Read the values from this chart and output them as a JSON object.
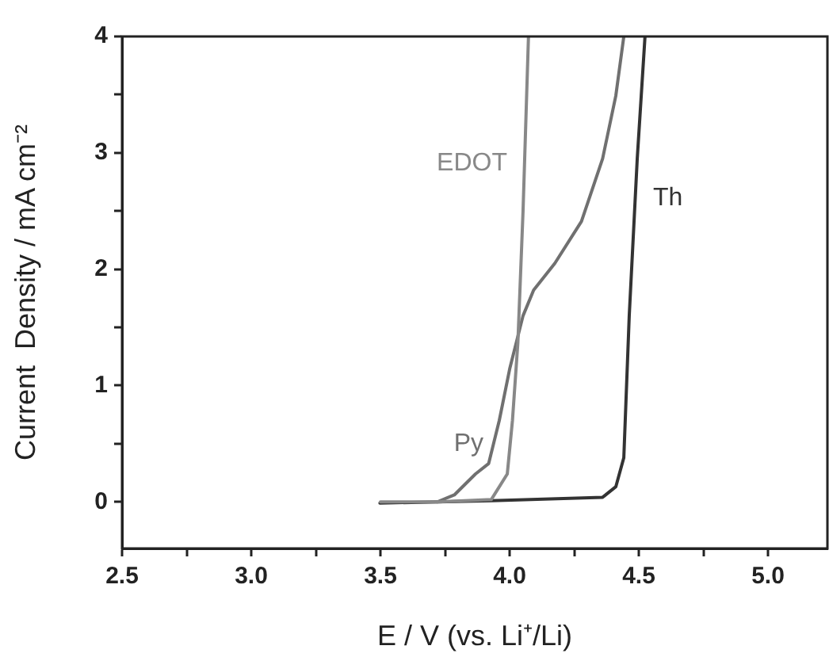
{
  "chart_data": {
    "type": "line",
    "xlabel": "E / V (vs. Li⁺/Li)",
    "ylabel": "Current  Density / mA cm⁻²",
    "xlim": [
      2.5,
      5.23
    ],
    "ylim": [
      -0.4,
      4
    ],
    "xticks": [
      {
        "value": 2.5,
        "label": "2.5"
      },
      {
        "value": 2.75,
        "label": null
      },
      {
        "value": 3,
        "label": "3.0"
      },
      {
        "value": 3.25,
        "label": null
      },
      {
        "value": 3.5,
        "label": "3.5"
      },
      {
        "value": 3.75,
        "label": null
      },
      {
        "value": 4,
        "label": "4.0"
      },
      {
        "value": 4.25,
        "label": null
      },
      {
        "value": 4.5,
        "label": "4.5"
      },
      {
        "value": 4.75,
        "label": null
      },
      {
        "value": 5,
        "label": "5.0"
      }
    ],
    "yticks": [
      0,
      {
        "value": 0.5,
        "label": null
      },
      1,
      {
        "value": 1.5,
        "label": null
      },
      2,
      {
        "value": 2.5,
        "label": null
      },
      3,
      {
        "value": 3.5,
        "label": null
      },
      4
    ],
    "grid": false,
    "legend": false,
    "marker": "none",
    "line_style": "solid",
    "series": [
      {
        "name": "EDOT",
        "color": "#888888",
        "x": [
          3.5,
          3.724,
          3.929,
          3.991,
          4.011,
          4.032,
          4.052,
          4.073
        ],
        "values": [
          0,
          0,
          0.02,
          0.24,
          0.7,
          1.37,
          2.5,
          4.0
        ]
      },
      {
        "name": "Py",
        "color": "#707070",
        "x": [
          3.72,
          3.786,
          3.868,
          3.919,
          3.96,
          4.001,
          4.052,
          4.093,
          4.175,
          4.278,
          4.36,
          4.411,
          4.442
        ],
        "values": [
          0,
          0.06,
          0.24,
          0.33,
          0.7,
          1.15,
          1.6,
          1.82,
          2.05,
          2.41,
          2.95,
          3.49,
          4.0
        ]
      },
      {
        "name": "Th",
        "color": "#333333",
        "x": [
          3.498,
          3.93,
          4.36,
          4.411,
          4.442,
          4.463,
          4.494,
          4.524
        ],
        "values": [
          -0.01,
          0.01,
          0.04,
          0.13,
          0.38,
          1.6,
          2.95,
          4.0
        ]
      }
    ]
  }
}
